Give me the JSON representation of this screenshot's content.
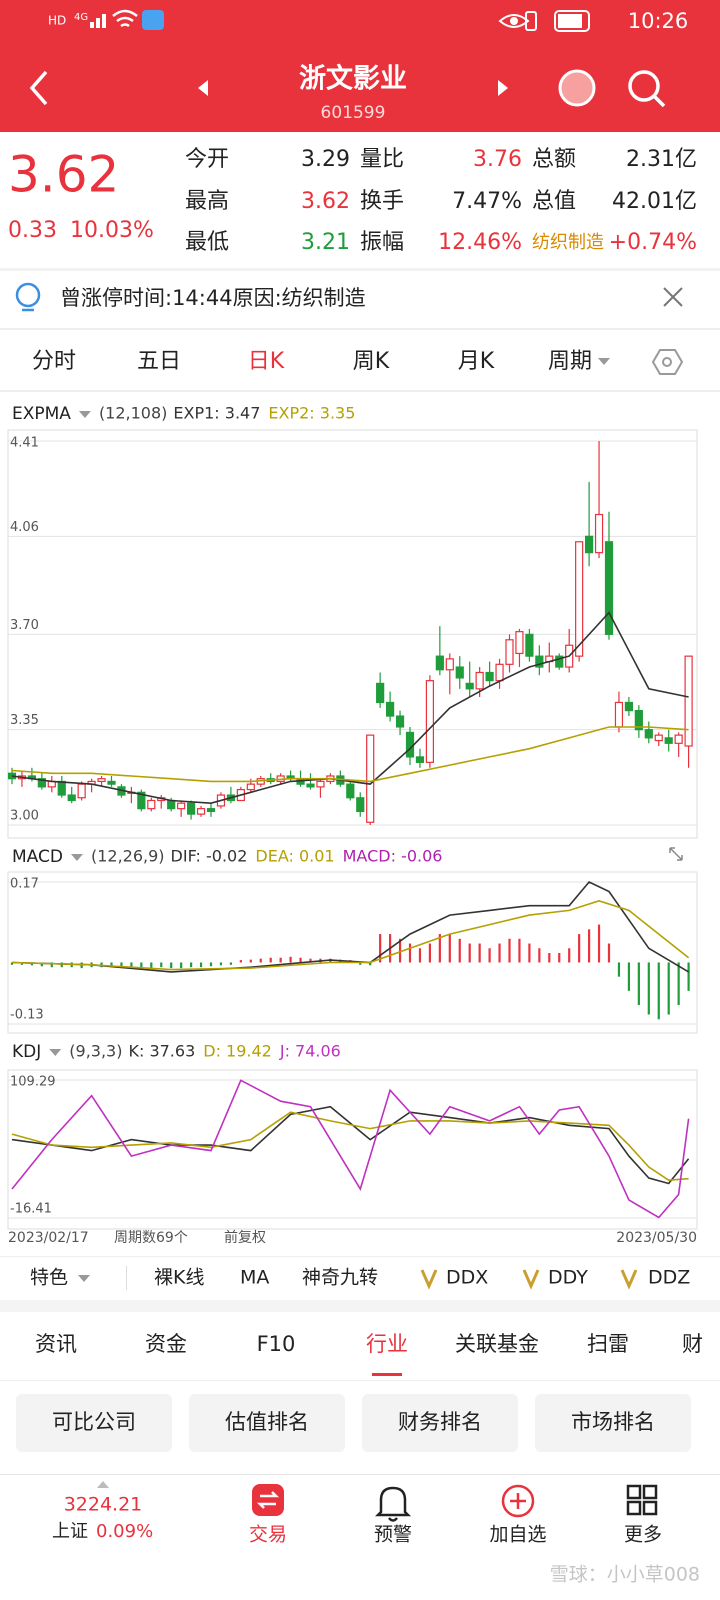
{
  "status": {
    "hd": "HD",
    "network": "4G",
    "time": "10:26"
  },
  "header": {
    "title": "浙文影业",
    "code": "601599"
  },
  "quote": {
    "price": "3.62",
    "change": "0.33",
    "pct": "10.03%",
    "rows": [
      [
        "今开",
        "3.29",
        "量比",
        "3.76",
        "总额",
        "2.31亿"
      ],
      [
        "最高",
        "3.62",
        "换手",
        "7.47%",
        "总值",
        "42.01亿"
      ],
      [
        "最低",
        "3.21",
        "振幅",
        "12.46%",
        "纺织制造",
        "+0.74%"
      ]
    ]
  },
  "notice": "曾涨停时间:14:44原因:纺织制造",
  "tabs": [
    "分时",
    "五日",
    "日K",
    "周K",
    "月K",
    "周期"
  ],
  "chart_data": [
    {
      "type": "candlestick",
      "title": "EXPMA",
      "subtitle": "(12,108)",
      "up_color": "#e8323c",
      "down_color": "#1f9d3a",
      "grid": true,
      "ylim": [
        3.0,
        4.41
      ],
      "yticks": [
        {
          "value": 3.0,
          "label": "3.00"
        },
        3.35,
        {
          "value": 3.7,
          "label": "3.70"
        },
        4.06,
        4.41
      ],
      "candles": [
        [
          3.19,
          3.21,
          3.15,
          3.17
        ],
        [
          3.17,
          3.2,
          3.14,
          3.18
        ],
        [
          3.18,
          3.21,
          3.16,
          3.17
        ],
        [
          3.17,
          3.19,
          3.13,
          3.14
        ],
        [
          3.14,
          3.18,
          3.12,
          3.16
        ],
        [
          3.16,
          3.18,
          3.1,
          3.11
        ],
        [
          3.11,
          3.14,
          3.08,
          3.09
        ],
        [
          3.1,
          3.16,
          3.09,
          3.15
        ],
        [
          3.15,
          3.17,
          3.12,
          3.16
        ],
        [
          3.16,
          3.18,
          3.14,
          3.17
        ],
        [
          3.16,
          3.18,
          3.14,
          3.15
        ],
        [
          3.14,
          3.15,
          3.1,
          3.11
        ],
        [
          3.12,
          3.14,
          3.08,
          3.12
        ],
        [
          3.12,
          3.13,
          3.05,
          3.06
        ],
        [
          3.06,
          3.1,
          3.05,
          3.09
        ],
        [
          3.09,
          3.11,
          3.06,
          3.1
        ],
        [
          3.09,
          3.1,
          3.05,
          3.06
        ],
        [
          3.06,
          3.09,
          3.03,
          3.08
        ],
        [
          3.08,
          3.09,
          3.02,
          3.04
        ],
        [
          3.04,
          3.07,
          3.03,
          3.06
        ],
        [
          3.06,
          3.08,
          3.03,
          3.05
        ],
        [
          3.07,
          3.12,
          3.06,
          3.11
        ],
        [
          3.11,
          3.14,
          3.08,
          3.09
        ],
        [
          3.09,
          3.14,
          3.09,
          3.13
        ],
        [
          3.13,
          3.17,
          3.12,
          3.15
        ],
        [
          3.15,
          3.18,
          3.14,
          3.17
        ],
        [
          3.17,
          3.19,
          3.15,
          3.16
        ],
        [
          3.16,
          3.19,
          3.15,
          3.18
        ],
        [
          3.18,
          3.2,
          3.16,
          3.17
        ],
        [
          3.17,
          3.2,
          3.14,
          3.15
        ],
        [
          3.15,
          3.19,
          3.13,
          3.14
        ],
        [
          3.14,
          3.17,
          3.1,
          3.16
        ],
        [
          3.16,
          3.19,
          3.15,
          3.18
        ],
        [
          3.18,
          3.2,
          3.14,
          3.15
        ],
        [
          3.15,
          3.16,
          3.09,
          3.1
        ],
        [
          3.1,
          3.12,
          3.03,
          3.05
        ],
        [
          3.01,
          3.33,
          3.0,
          3.33
        ],
        [
          3.52,
          3.56,
          3.43,
          3.45
        ],
        [
          3.45,
          3.49,
          3.38,
          3.4
        ],
        [
          3.4,
          3.42,
          3.33,
          3.36
        ],
        [
          3.34,
          3.36,
          3.22,
          3.25
        ],
        [
          3.25,
          3.28,
          3.21,
          3.23
        ],
        [
          3.23,
          3.55,
          3.21,
          3.53
        ],
        [
          3.62,
          3.73,
          3.55,
          3.57
        ],
        [
          3.57,
          3.63,
          3.48,
          3.61
        ],
        [
          3.58,
          3.62,
          3.5,
          3.54
        ],
        [
          3.52,
          3.6,
          3.47,
          3.5
        ],
        [
          3.5,
          3.58,
          3.47,
          3.56
        ],
        [
          3.56,
          3.6,
          3.51,
          3.53
        ],
        [
          3.53,
          3.61,
          3.5,
          3.59
        ],
        [
          3.59,
          3.7,
          3.56,
          3.68
        ],
        [
          3.63,
          3.72,
          3.58,
          3.71
        ],
        [
          3.7,
          3.72,
          3.6,
          3.62
        ],
        [
          3.62,
          3.66,
          3.55,
          3.58
        ],
        [
          3.6,
          3.67,
          3.56,
          3.62
        ],
        [
          3.62,
          3.63,
          3.57,
          3.58
        ],
        [
          3.58,
          3.72,
          3.56,
          3.66
        ],
        [
          3.62,
          4.04,
          3.6,
          4.04
        ],
        [
          4.06,
          4.26,
          3.95,
          4.0
        ],
        [
          4.0,
          4.41,
          3.98,
          4.14
        ],
        [
          4.04,
          4.15,
          3.68,
          3.7
        ],
        [
          3.36,
          3.49,
          3.34,
          3.45
        ],
        [
          3.45,
          3.47,
          3.4,
          3.42
        ],
        [
          3.42,
          3.44,
          3.32,
          3.35
        ],
        [
          3.35,
          3.38,
          3.3,
          3.32
        ],
        [
          3.31,
          3.34,
          3.29,
          3.33
        ],
        [
          3.32,
          3.35,
          3.27,
          3.3
        ],
        [
          3.3,
          3.34,
          3.25,
          3.33
        ],
        [
          3.29,
          3.62,
          3.21,
          3.62
        ]
      ],
      "series": [
        {
          "name": "EXP1: 3.47",
          "color": "#333333",
          "x": [
            0,
            4,
            8,
            12,
            16,
            20,
            24,
            28,
            32,
            36,
            40,
            44,
            48,
            52,
            56,
            60,
            64,
            68
          ],
          "values": [
            3.18,
            3.16,
            3.15,
            3.12,
            3.09,
            3.08,
            3.12,
            3.16,
            3.17,
            3.15,
            3.28,
            3.43,
            3.51,
            3.58,
            3.62,
            3.78,
            3.5,
            3.47
          ]
        },
        {
          "name": "EXP2: 3.35",
          "color": "#b5a000",
          "x": [
            0,
            4,
            8,
            12,
            16,
            20,
            24,
            28,
            32,
            36,
            40,
            44,
            48,
            52,
            56,
            60,
            64,
            68
          ],
          "values": [
            3.2,
            3.19,
            3.19,
            3.18,
            3.17,
            3.16,
            3.16,
            3.17,
            3.17,
            3.16,
            3.19,
            3.22,
            3.25,
            3.28,
            3.32,
            3.36,
            3.36,
            3.35
          ]
        }
      ]
    },
    {
      "type": "bar",
      "title": "MACD",
      "subtitle": "(12,26,9)",
      "name": "MACD: -0.06",
      "name_color": "#b020b0",
      "up_color": "#e8323c",
      "down_color": "#1f9d3a",
      "grid": true,
      "ylim": [
        -0.13,
        0.17
      ],
      "yticks": [
        -0.13,
        0.17
      ],
      "values": [
        -0.005,
        -0.005,
        -0.006,
        -0.008,
        -0.01,
        -0.01,
        -0.01,
        -0.012,
        -0.01,
        -0.01,
        -0.008,
        -0.008,
        -0.01,
        -0.012,
        -0.012,
        -0.01,
        -0.012,
        -0.012,
        -0.01,
        -0.01,
        -0.008,
        -0.006,
        -0.005,
        0.005,
        0.006,
        0.008,
        0.01,
        0.01,
        0.012,
        0.01,
        0.008,
        0.008,
        0.008,
        0.006,
        0.005,
        -0.005,
        -0.006,
        0.06,
        0.06,
        0.05,
        0.04,
        0.03,
        0.04,
        0.06,
        0.06,
        0.05,
        0.04,
        0.04,
        0.03,
        0.04,
        0.05,
        0.05,
        0.04,
        0.03,
        0.02,
        0.02,
        0.03,
        0.06,
        0.07,
        0.08,
        0.04,
        -0.03,
        -0.06,
        -0.09,
        -0.11,
        -0.12,
        -0.11,
        -0.09,
        -0.06
      ],
      "series": [
        {
          "name": "DIF: -0.02",
          "color": "#333333",
          "x": [
            0,
            8,
            16,
            24,
            32,
            36,
            40,
            44,
            48,
            52,
            56,
            58,
            60,
            64,
            68
          ],
          "values": [
            0.0,
            -0.005,
            -0.02,
            -0.01,
            0.005,
            0.0,
            0.06,
            0.1,
            0.11,
            0.12,
            0.12,
            0.17,
            0.15,
            0.03,
            -0.02
          ]
        },
        {
          "name": "DEA: 0.01",
          "color": "#b5a000",
          "x": [
            0,
            8,
            16,
            24,
            32,
            36,
            40,
            44,
            48,
            52,
            56,
            59,
            62,
            65,
            68
          ],
          "values": [
            0.0,
            -0.005,
            -0.015,
            -0.012,
            0.0,
            0.0,
            0.03,
            0.06,
            0.08,
            0.1,
            0.11,
            0.13,
            0.11,
            0.06,
            0.01
          ]
        }
      ]
    },
    {
      "type": "line",
      "title": "KDJ",
      "subtitle": "(9,3,3)",
      "grid": true,
      "ylim": [
        -16.41,
        109.29
      ],
      "yticks": [
        -16.41,
        109.29
      ],
      "series": [
        {
          "name": "K: 37.63",
          "color": "#333333",
          "x": [
            0,
            4,
            8,
            12,
            16,
            20,
            24,
            28,
            32,
            36,
            40,
            44,
            48,
            52,
            56,
            60,
            62,
            64,
            66,
            68
          ],
          "values": [
            55,
            50,
            45,
            55,
            50,
            50,
            45,
            78,
            85,
            55,
            80,
            75,
            70,
            75,
            68,
            65,
            40,
            20,
            15,
            37.63
          ]
        },
        {
          "name": "D: 19.42",
          "color": "#b5a000",
          "x": [
            0,
            4,
            8,
            12,
            16,
            20,
            24,
            28,
            32,
            36,
            40,
            44,
            48,
            52,
            56,
            60,
            62,
            64,
            66,
            68
          ],
          "values": [
            60,
            50,
            48,
            50,
            52,
            48,
            55,
            80,
            72,
            65,
            72,
            72,
            70,
            72,
            70,
            68,
            50,
            30,
            18,
            19.42
          ]
        },
        {
          "name": "J: 74.06",
          "color": "#c030c0",
          "x": [
            0,
            4,
            8,
            12,
            16,
            20,
            23,
            27,
            30,
            32,
            35,
            38,
            42,
            44,
            48,
            51,
            53,
            55,
            57,
            60,
            62,
            65,
            67,
            68
          ],
          "values": [
            10,
            55,
            95,
            40,
            50,
            45,
            109,
            90,
            85,
            55,
            10,
            100,
            60,
            85,
            72,
            85,
            60,
            82,
            85,
            40,
            0,
            -16,
            5,
            74.06
          ]
        }
      ]
    }
  ],
  "axis_footer": {
    "start": "2023/02/17",
    "count": "周期数69个",
    "adjust": "前复权",
    "end": "2023/05/30"
  },
  "toolbar": [
    "特色",
    "裸K线",
    "MA",
    "神奇九转",
    "DDX",
    "DDY",
    "DDZ"
  ],
  "sections": [
    "资讯",
    "资金",
    "F10",
    "行业",
    "关联基金",
    "扫雷",
    "财"
  ],
  "buttons": [
    "可比公司",
    "估值排名",
    "财务排名",
    "市场排名"
  ],
  "nav": {
    "index_value": "3224.21",
    "index_name": "上证",
    "index_pct": "0.09%",
    "items": [
      "交易",
      "预警",
      "加自选",
      "更多"
    ]
  },
  "watermark": "雪球：小小草008"
}
